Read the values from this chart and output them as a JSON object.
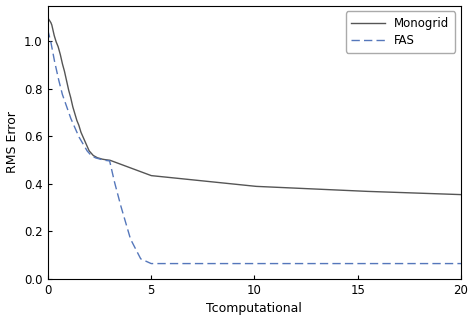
{
  "title": "",
  "xlabel": "Tcomputational",
  "ylabel": "RMS Error",
  "xlim": [
    0,
    20
  ],
  "ylim": [
    0,
    1.15
  ],
  "yticks": [
    0,
    0.2,
    0.4,
    0.6,
    0.8,
    1.0
  ],
  "xticks": [
    0,
    5,
    10,
    15,
    20
  ],
  "monogrid_color": "#555555",
  "fas_color": "#5577bb",
  "legend_labels": [
    "Monogrid",
    "FAS"
  ],
  "background_color": "#ffffff",
  "figsize": [
    4.74,
    3.21
  ],
  "dpi": 100
}
